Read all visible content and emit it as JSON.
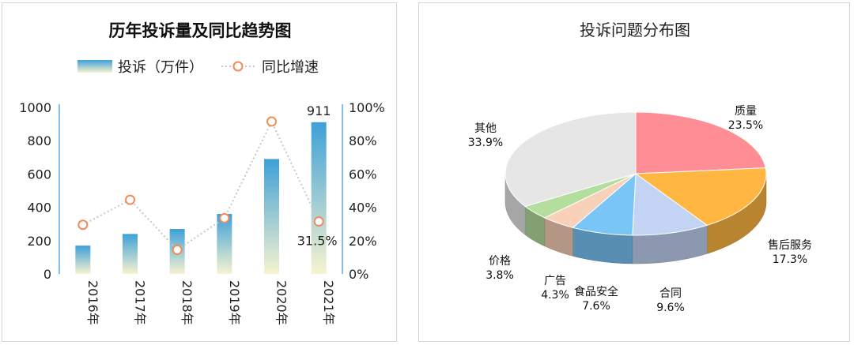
{
  "chart_data": [
    {
      "type": "bar+line",
      "title": "历年投诉量及同比趋势图",
      "categories": [
        "2016年",
        "2017年",
        "2018年",
        "2019年",
        "2020年",
        "2021年"
      ],
      "series": [
        {
          "name": "投诉（万件）",
          "type": "bar",
          "axis": "left",
          "values": [
            170,
            240,
            270,
            360,
            690,
            911
          ]
        },
        {
          "name": "同比增速",
          "type": "line",
          "axis": "right",
          "values": [
            29.5,
            44.5,
            14.5,
            33.5,
            91.5,
            31.5
          ]
        }
      ],
      "y_left": {
        "min": 0,
        "max": 1000,
        "ticks": [
          "0",
          "200",
          "400",
          "600",
          "800",
          "1000"
        ]
      },
      "y_right": {
        "min": 0,
        "max": 100,
        "ticks": [
          "0%",
          "20%",
          "40%",
          "60%",
          "80%",
          "100%"
        ]
      },
      "data_labels": {
        "bar_last": "911",
        "line_last": "31.5%"
      },
      "colors": {
        "bar_top": "#3ea0d8",
        "bar_bottom": "#f7f3cf",
        "line": "#c8c8c8",
        "marker": "#f08c5a",
        "axis": "#62a8de"
      }
    },
    {
      "type": "pie",
      "title": "投诉问题分布图",
      "slices": [
        {
          "label": "质量",
          "value": 23.5,
          "value_label": "23.5%",
          "color": "#ff8d96"
        },
        {
          "label": "售后服务",
          "value": 17.3,
          "value_label": "17.3%",
          "color": "#ffb741"
        },
        {
          "label": "合同",
          "value": 9.6,
          "value_label": "9.6%",
          "color": "#c2d3f4"
        },
        {
          "label": "食品安全",
          "value": 7.6,
          "value_label": "7.6%",
          "color": "#79c5f6"
        },
        {
          "label": "广告",
          "value": 4.3,
          "value_label": "4.3%",
          "color": "#f8d2b8"
        },
        {
          "label": "价格",
          "value": 3.8,
          "value_label": "3.8%",
          "color": "#b4de9d"
        },
        {
          "label": "其他",
          "value": 33.9,
          "value_label": "33.9%",
          "color": "#e6e6e6"
        }
      ]
    }
  ]
}
